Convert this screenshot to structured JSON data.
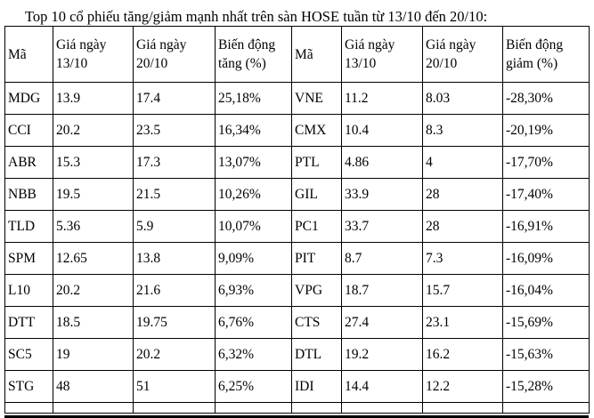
{
  "title": "Top 10 cổ phiếu tăng/giảm mạnh nhất trên sàn HOSE tuần từ 13/10 đến 20/10:",
  "table": {
    "columns": [
      "Mã",
      "Giá ngày 13/10",
      "Giá ngày 20/10",
      "Biến động tăng (%)",
      "Mã",
      "Giá ngày 13/10",
      "Giá ngày 20/10",
      "Biến động giảm (%)"
    ],
    "rows": [
      [
        "MDG",
        "13.9",
        "17.4",
        "25,18%",
        "VNE",
        "11.2",
        "8.03",
        "-28,30%"
      ],
      [
        "CCI",
        "20.2",
        "23.5",
        "16,34%",
        "CMX",
        "10.4",
        "8.3",
        "-20,19%"
      ],
      [
        "ABR",
        "15.3",
        "17.3",
        "13,07%",
        "PTL",
        "4.86",
        "4",
        "-17,70%"
      ],
      [
        "NBB",
        "19.5",
        "21.5",
        "10,26%",
        "GIL",
        "33.9",
        "28",
        "-17,40%"
      ],
      [
        "TLD",
        "5.36",
        "5.9",
        "10,07%",
        "PC1",
        "33.7",
        "28",
        "-16,91%"
      ],
      [
        "SPM",
        "12.65",
        "13.8",
        "9,09%",
        "PIT",
        "8.7",
        "7.3",
        "-16,09%"
      ],
      [
        "L10",
        "20.2",
        "21.6",
        "6,93%",
        "VPG",
        "18.7",
        "15.7",
        "-16,04%"
      ],
      [
        "DTT",
        "18.5",
        "19.75",
        "6,76%",
        "CTS",
        "27.4",
        "23.1",
        "-15,69%"
      ],
      [
        "SC5",
        "19",
        "20.2",
        "6,32%",
        "DTL",
        "19.2",
        "16.2",
        "-15,63%"
      ],
      [
        "STG",
        "48",
        "51",
        "6,25%",
        "IDI",
        "14.4",
        "12.2",
        "-15,28%"
      ]
    ],
    "colors": {
      "border": "#000000",
      "text": "#000000",
      "background": "#ffffff"
    }
  }
}
